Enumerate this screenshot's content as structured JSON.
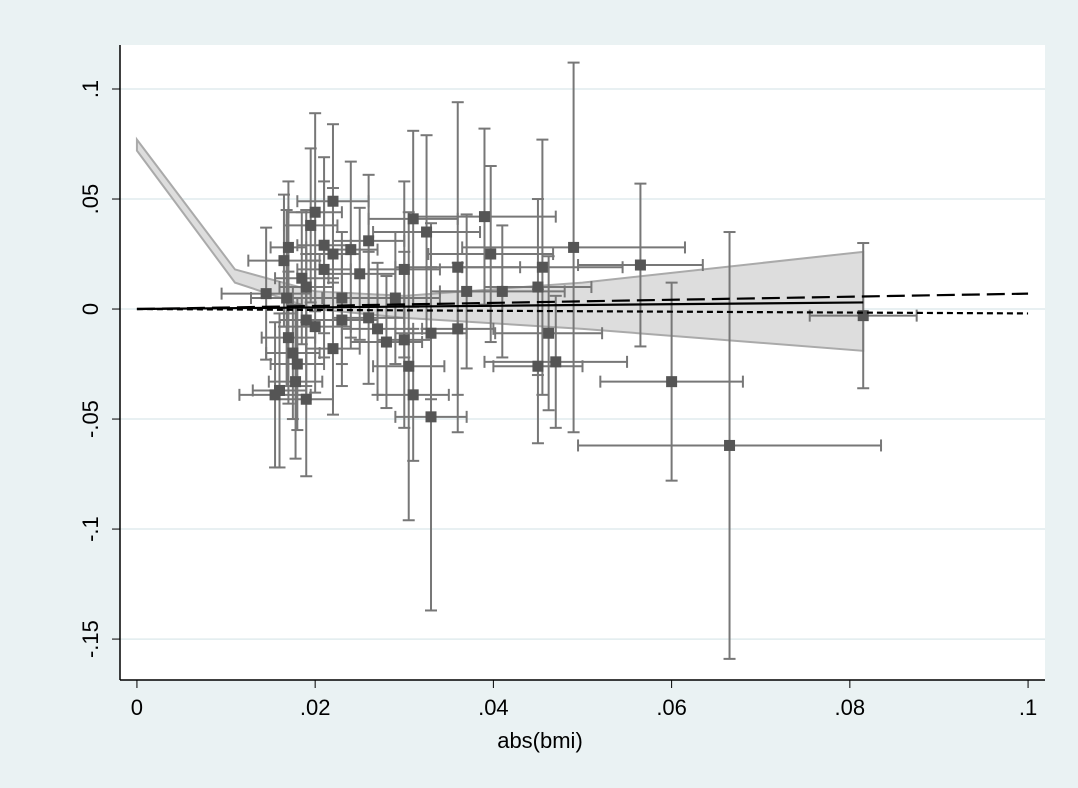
{
  "chart_data": {
    "type": "scatter",
    "x_label": "abs(bmi)",
    "xlim": [
      -0.0019,
      0.1019
    ],
    "ylim": [
      -0.1686,
      0.12
    ],
    "xticks": [
      0,
      {
        "value": 0.02,
        "label": ".02"
      },
      {
        "value": 0.04,
        "label": ".04"
      },
      {
        "value": 0.06,
        "label": ".06"
      },
      {
        "value": 0.08,
        "label": ".08"
      },
      {
        "value": 0.1,
        "label": ".1"
      }
    ],
    "yticks": [
      {
        "value": -0.15,
        "label": "-.15"
      },
      {
        "value": -0.1,
        "label": "-.1"
      },
      {
        "value": -0.05,
        "label": "-.05"
      },
      0,
      {
        "value": 0.05,
        "label": ".05"
      },
      {
        "value": 0.1,
        "label": ".1"
      }
    ],
    "grid": true,
    "marker_color": "#555555",
    "error_color": "#777777",
    "series": [
      {
        "x": [
          0.0815,
          0.0665,
          0.06,
          0.0565,
          0.049,
          0.047,
          0.0462,
          0.0455,
          0.045,
          0.045,
          0.041,
          0.0397,
          0.039,
          0.037,
          0.036,
          0.036,
          0.033,
          0.033,
          0.0325,
          0.031,
          0.031,
          0.0305,
          0.03,
          0.03,
          0.029,
          0.028,
          0.027,
          0.026,
          0.025,
          0.024,
          0.023,
          0.022,
          0.022,
          0.022,
          0.021,
          0.021,
          0.02,
          0.02,
          0.0195,
          0.019,
          0.019,
          0.018,
          0.0178,
          0.017,
          0.017,
          0.0168,
          0.0165,
          0.016,
          0.0155,
          0.0145,
          0.0175,
          0.0185,
          0.023,
          0.026,
          0.019
        ],
        "values": [
          -0.003,
          -0.062,
          -0.033,
          0.02,
          0.028,
          -0.024,
          -0.011,
          0.019,
          -0.026,
          0.01,
          0.008,
          0.025,
          0.042,
          0.008,
          -0.009,
          0.019,
          -0.049,
          -0.011,
          0.035,
          0.041,
          -0.039,
          -0.026,
          -0.014,
          0.018,
          0.005,
          -0.015,
          -0.009,
          0.031,
          0.016,
          0.027,
          -0.005,
          0.049,
          0.025,
          -0.018,
          0.029,
          0.018,
          0.044,
          -0.008,
          0.038,
          -0.041,
          0.01,
          -0.025,
          -0.033,
          0.028,
          -0.013,
          0.005,
          0.022,
          -0.037,
          -0.039,
          0.007,
          -0.02,
          0.014,
          0.005,
          -0.004,
          -0.005
        ],
        "xerr": [
          0.006,
          0.017,
          0.008,
          0.007,
          0.0125,
          0.008,
          0.006,
          0.009,
          0.005,
          0.006,
          0.007,
          0.007,
          0.008,
          0.004,
          0.004,
          0.007,
          0.004,
          0.004,
          0.006,
          0.005,
          0.004,
          0.004,
          0.003,
          0.004,
          0.005,
          0.004,
          0.004,
          0.004,
          0.004,
          0.003,
          0.004,
          0.004,
          0.003,
          0.003,
          0.003,
          0.003,
          0.003,
          0.004,
          0.003,
          0.003,
          0.003,
          0.003,
          0.003,
          0.002,
          0.003,
          0.004,
          0.004,
          0.003,
          0.004,
          0.005,
          0.003,
          0.003,
          0.004,
          0.004,
          0.003
        ],
        "yerr": [
          0.033,
          0.097,
          0.045,
          0.037,
          0.084,
          0.03,
          0.035,
          0.058,
          0.035,
          0.04,
          0.03,
          0.04,
          0.04,
          0.035,
          0.03,
          0.075,
          0.088,
          0.03,
          0.044,
          0.04,
          0.03,
          0.07,
          0.04,
          0.04,
          0.03,
          0.03,
          0.03,
          0.03,
          0.03,
          0.04,
          0.03,
          0.035,
          0.03,
          0.03,
          0.04,
          0.04,
          0.045,
          0.03,
          0.035,
          0.035,
          0.035,
          0.03,
          0.035,
          0.03,
          0.03,
          0.04,
          0.03,
          0.035,
          0.033,
          0.03,
          0.03,
          0.03,
          0.03,
          0.03,
          0.03
        ]
      }
    ],
    "band": {
      "x": [
        0,
        0.011,
        0.02,
        0.03,
        0.05,
        0.0815
      ],
      "upper": [
        0.077,
        0.018,
        0.008,
        0.006,
        0.012,
        0.026
      ],
      "lower": [
        0.072,
        0.012,
        0.0,
        -0.004,
        -0.009,
        -0.019
      ],
      "color": "#dddddd",
      "edge": "#aaaaaa"
    },
    "lines": [
      {
        "x": [
          0,
          0.0815
        ],
        "values": [
          0,
          0.003
        ],
        "style": "solid",
        "color": "#000000"
      },
      {
        "x": [
          0,
          0.1
        ],
        "values": [
          0,
          0.007
        ],
        "style": "longdash",
        "color": "#000000"
      },
      {
        "x": [
          0,
          0.1
        ],
        "values": [
          0,
          -0.002
        ],
        "style": "shortdash",
        "color": "#000000"
      }
    ]
  }
}
